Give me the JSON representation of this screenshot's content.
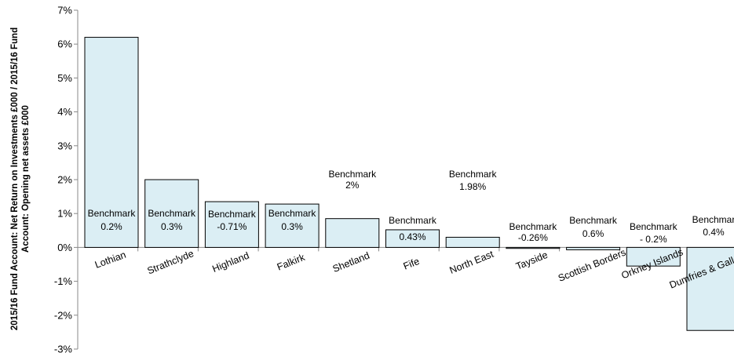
{
  "chart_data": {
    "type": "bar",
    "ylabel": "2015/16 Fund Account: Net Return on Investments £000 / 2015/16 Fund Account: Opening net assets £000",
    "ylim": [
      -3,
      7
    ],
    "yticks": [
      "-3%",
      "-2%",
      "-1%",
      "0%",
      "1%",
      "2%",
      "3%",
      "4%",
      "5%",
      "6%",
      "7%"
    ],
    "grid": false,
    "categories": [
      "Lothian",
      "Strathclyde",
      "Highland",
      "Falkirk",
      "Shetland",
      "Fife",
      "North East",
      "Tayside",
      "Scottish Borders",
      "Orkney Islands",
      "Dumfries & Galloway"
    ],
    "values": [
      6.2,
      2.0,
      1.35,
      1.28,
      0.85,
      0.52,
      0.3,
      -0.03,
      -0.07,
      -0.55,
      -2.45
    ],
    "bar_color": "#dbeef4",
    "annotations": [
      {
        "line1": "Benchmark",
        "line2": "0.2%"
      },
      {
        "line1": "Benchmark",
        "line2": "0.3%"
      },
      {
        "line1": "Benchmark",
        "line2": "-0.71%"
      },
      {
        "line1": "Benchmark",
        "line2": "0.3%"
      },
      {
        "line1": "Benchmark",
        "line2": "2%"
      },
      {
        "line1": "Benchmark",
        "line2": "0.43%"
      },
      {
        "line1": "Benchmark",
        "line2": "1.98%"
      },
      {
        "line1": "Benchmark",
        "line2": "-0.26%"
      },
      {
        "line1": "Benchmark",
        "line2": "0.6%"
      },
      {
        "line1": "Benchmark",
        "line2": "- 0.2%"
      },
      {
        "line1": "Benchmar",
        "line2": "0.4%"
      }
    ]
  }
}
